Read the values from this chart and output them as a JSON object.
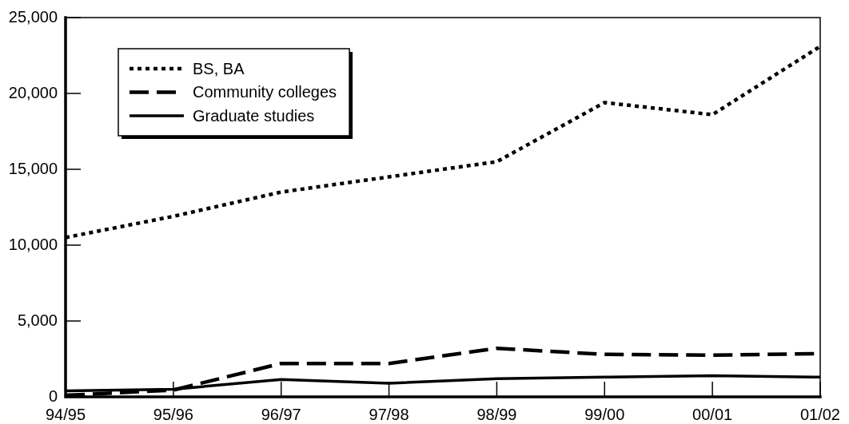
{
  "chart_data": {
    "type": "line",
    "categories": [
      "94/95",
      "95/96",
      "96/97",
      "97/98",
      "98/99",
      "99/00",
      "00/01",
      "01/02"
    ],
    "series": [
      {
        "name": "BS, BA",
        "color": "#000000",
        "line_style": "dotted",
        "values": [
          10500,
          11900,
          13500,
          14500,
          15500,
          19400,
          18600,
          23100
        ]
      },
      {
        "name": "Community colleges",
        "color": "#000000",
        "line_style": "dashed",
        "values": [
          100,
          450,
          2200,
          2200,
          3200,
          2800,
          2750,
          2850
        ]
      },
      {
        "name": "Graduate studies",
        "color": "#000000",
        "line_style": "solid",
        "values": [
          400,
          500,
          1150,
          900,
          1200,
          1300,
          1400,
          1300
        ]
      }
    ],
    "ylim": [
      0,
      25000
    ],
    "yticks": [
      0,
      {
        "value": 5000,
        "label": "5,000"
      },
      {
        "value": 10000,
        "label": "10,000"
      },
      {
        "value": 15000,
        "label": "15,000"
      },
      {
        "value": 20000,
        "label": "20,000"
      },
      {
        "value": 25000,
        "label": "25,000"
      }
    ],
    "grid": false,
    "legend": "top left",
    "marker": "none"
  }
}
